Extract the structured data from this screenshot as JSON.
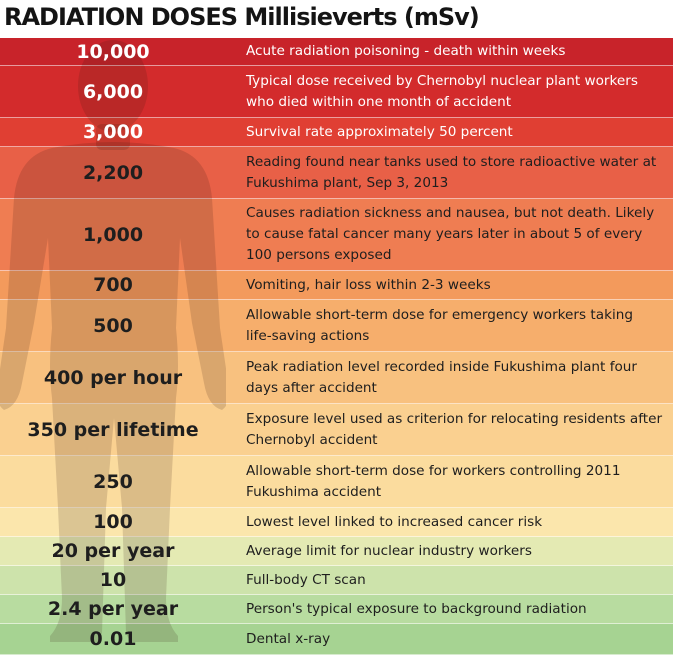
{
  "title": "RADIATION DOSES Millisieverts (mSv)",
  "colors": {
    "silhouette": "#3a1a10",
    "light_text": "#ffffff",
    "dark_text": "#1e1e1e"
  },
  "rows": [
    {
      "dose": "10,000",
      "description": "Acute radiation poisoning - death within weeks",
      "bg": "#c8232a",
      "light": true
    },
    {
      "dose": "6,000",
      "description": "Typical dose received by Chernobyl nuclear plant workers\nwho died within one month of accident",
      "bg": "#d32b2c",
      "light": true
    },
    {
      "dose": "3,000",
      "description": "Survival rate approximately 50 percent",
      "bg": "#e03f33",
      "light": true
    },
    {
      "dose": "2,200",
      "description": "Reading found near tanks used to store radioactive water at\nFukushima plant, Sep 3, 2013",
      "bg": "#e86047",
      "light": false
    },
    {
      "dose": "1,000",
      "description": "Causes radiation sickness and nausea, but not death. Likely\nto cause fatal cancer many years later in about 5 of every\n100 persons exposed",
      "bg": "#ef7d52",
      "light": false
    },
    {
      "dose": "700",
      "description": "Vomiting, hair loss within 2-3 weeks",
      "bg": "#f39a5c",
      "light": false
    },
    {
      "dose": "500",
      "description": "Allowable short-term dose for emergency workers taking\nlife-saving actions",
      "bg": "#f6ae6c",
      "light": false
    },
    {
      "dose": "400 per hour",
      "description": "Peak radiation level recorded inside Fukushima plant four\ndays after accident",
      "bg": "#f8c17f",
      "light": false
    },
    {
      "dose": "350 per lifetime",
      "description": "Exposure level used as criterion for relocating residents after\nChernobyl accident",
      "bg": "#fad090",
      "light": false
    },
    {
      "dose": "250",
      "description": "Allowable short-term dose for workers controlling 2011\nFukushima accident",
      "bg": "#fbdc9e",
      "light": false
    },
    {
      "dose": "100",
      "description": "Lowest level linked to increased cancer risk",
      "bg": "#fbe6ac",
      "light": false
    },
    {
      "dose": "20 per year",
      "description": "Average limit for nuclear industry workers",
      "bg": "#e4eab3",
      "light": false
    },
    {
      "dose": "10",
      "description": "Full-body CT scan",
      "bg": "#cde3ab",
      "light": false
    },
    {
      "dose": "2.4 per year",
      "description": "Person's typical exposure to background radiation",
      "bg": "#b8dca0",
      "light": false
    },
    {
      "dose": "0.01",
      "description": "Dental x-ray",
      "bg": "#a6d392",
      "light": false
    }
  ]
}
